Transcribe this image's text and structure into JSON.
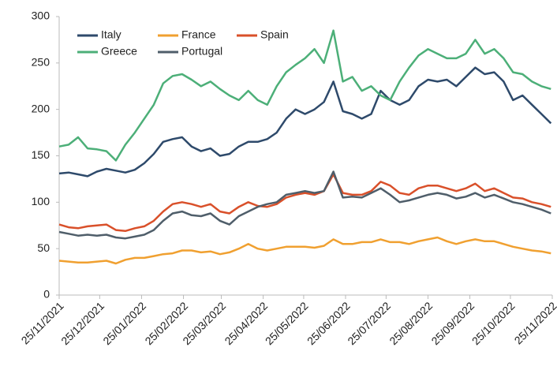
{
  "chart_data": {
    "type": "line",
    "x": [
      "25/11/2021",
      "02/12/2021",
      "09/12/2021",
      "16/12/2021",
      "23/12/2021",
      "30/12/2021",
      "06/01/2022",
      "13/01/2022",
      "20/01/2022",
      "27/01/2022",
      "03/02/2022",
      "10/02/2022",
      "17/02/2022",
      "24/02/2022",
      "03/03/2022",
      "10/03/2022",
      "17/03/2022",
      "24/03/2022",
      "31/03/2022",
      "07/04/2022",
      "14/04/2022",
      "21/04/2022",
      "28/04/2022",
      "05/05/2022",
      "12/05/2022",
      "19/05/2022",
      "26/05/2022",
      "02/06/2022",
      "09/06/2022",
      "16/06/2022",
      "23/06/2022",
      "30/06/2022",
      "07/07/2022",
      "14/07/2022",
      "21/07/2022",
      "28/07/2022",
      "04/08/2022",
      "11/08/2022",
      "18/08/2022",
      "25/08/2022",
      "01/09/2022",
      "08/09/2022",
      "15/09/2022",
      "22/09/2022",
      "29/09/2022",
      "06/10/2022",
      "13/10/2022",
      "20/10/2022",
      "27/10/2022",
      "03/11/2022",
      "10/11/2022",
      "17/11/2022",
      "24/11/2022"
    ],
    "series": [
      {
        "name": "Italy",
        "color": "#2e4a6b",
        "values": [
          131,
          132,
          130,
          128,
          133,
          136,
          134,
          132,
          135,
          142,
          152,
          165,
          168,
          170,
          160,
          155,
          158,
          150,
          152,
          160,
          165,
          165,
          168,
          175,
          190,
          200,
          195,
          200,
          208,
          230,
          198,
          195,
          190,
          195,
          220,
          210,
          205,
          210,
          225,
          232,
          230,
          232,
          225,
          235,
          245,
          238,
          240,
          230,
          210,
          215,
          205,
          195,
          185
        ]
      },
      {
        "name": "France",
        "color": "#f0a030",
        "values": [
          37,
          36,
          35,
          35,
          36,
          37,
          34,
          38,
          40,
          40,
          42,
          44,
          45,
          48,
          48,
          46,
          47,
          44,
          46,
          50,
          55,
          50,
          48,
          50,
          52,
          52,
          52,
          51,
          53,
          60,
          55,
          55,
          57,
          57,
          60,
          57,
          57,
          55,
          58,
          60,
          62,
          58,
          55,
          58,
          60,
          58,
          58,
          55,
          52,
          50,
          48,
          47,
          45
        ]
      },
      {
        "name": "Spain",
        "color": "#d9502a",
        "values": [
          76,
          73,
          72,
          74,
          75,
          76,
          70,
          69,
          72,
          74,
          80,
          90,
          98,
          100,
          98,
          95,
          98,
          90,
          88,
          95,
          100,
          96,
          95,
          98,
          105,
          108,
          110,
          108,
          112,
          130,
          110,
          108,
          108,
          112,
          122,
          118,
          110,
          108,
          115,
          118,
          118,
          115,
          112,
          115,
          120,
          112,
          115,
          110,
          105,
          104,
          100,
          98,
          95
        ]
      },
      {
        "name": "Greece",
        "color": "#4caf78",
        "values": [
          160,
          162,
          170,
          158,
          157,
          155,
          145,
          162,
          175,
          190,
          205,
          228,
          236,
          238,
          232,
          225,
          230,
          222,
          215,
          210,
          220,
          210,
          205,
          225,
          240,
          248,
          255,
          265,
          250,
          285,
          230,
          235,
          220,
          225,
          215,
          210,
          230,
          245,
          258,
          265,
          260,
          255,
          255,
          260,
          275,
          260,
          265,
          255,
          240,
          238,
          230,
          225,
          222
        ]
      },
      {
        "name": "Portugal",
        "color": "#4f5e6a",
        "values": [
          68,
          66,
          64,
          65,
          64,
          65,
          62,
          61,
          63,
          65,
          70,
          80,
          88,
          90,
          86,
          85,
          88,
          80,
          76,
          85,
          90,
          95,
          98,
          100,
          108,
          110,
          112,
          110,
          112,
          133,
          105,
          106,
          105,
          110,
          115,
          108,
          100,
          102,
          105,
          108,
          110,
          108,
          104,
          106,
          110,
          105,
          108,
          104,
          100,
          98,
          95,
          92,
          88
        ]
      }
    ],
    "xlim": [
      "25/11/2021",
      "25/11/2022"
    ],
    "xticks": [
      "25/11/2021",
      "25/12/2021",
      "25/01/2022",
      "25/02/2022",
      "25/03/2022",
      "25/04/2022",
      "25/05/2022",
      "25/06/2022",
      "25/07/2022",
      "25/08/2022",
      "25/09/2022",
      "25/10/2022",
      "25/11/2022"
    ],
    "ylim": [
      0,
      300
    ],
    "yticks": [
      0,
      50,
      100,
      150,
      200,
      250,
      300
    ],
    "grid": false,
    "legend": "top-left"
  }
}
